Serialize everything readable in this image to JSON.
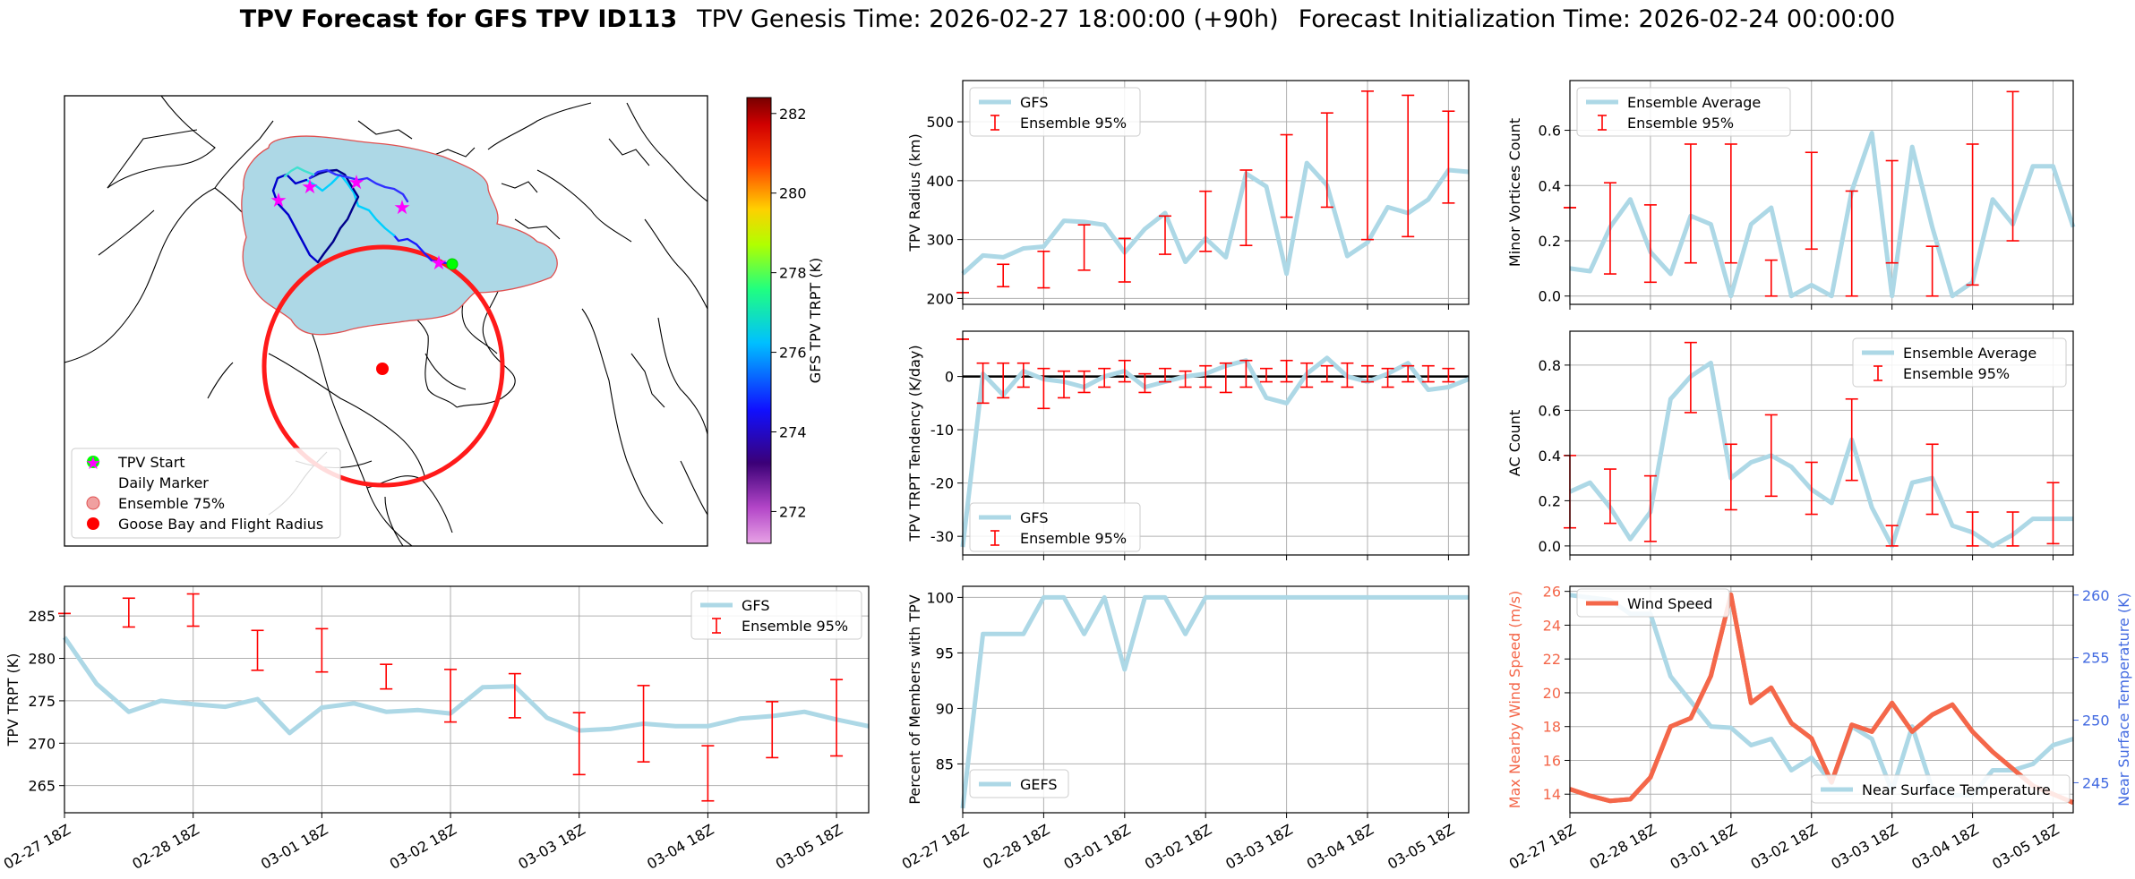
{
  "title": {
    "bold": "TPV Forecast for GFS TPV ID113",
    "genesis": "TPV Genesis Time: 2026-02-27 18:00:00 (+90h)",
    "init": "Forecast Initialization Time: 2026-02-24 00:00:00"
  },
  "colors": {
    "gfs_line": "#add8e6",
    "errorbar": "#ff0000",
    "wind": "#f4674a",
    "surface_temp": "#add8e6",
    "temp_axis": "#4169e1",
    "marker_start": "#00ff00",
    "marker_daily": "#ff00ff",
    "goose": "#ff0000",
    "ensemble_fill": "#add8e6"
  },
  "x_ticks": [
    "02-27 18Z",
    "02-28 18Z",
    "03-01 18Z",
    "03-02 18Z",
    "03-03 18Z",
    "03-04 18Z",
    "03-05 18Z"
  ],
  "map": {
    "colorbar_label": "GFS TPV TRPT (K)",
    "colorbar_ticks": [
      272,
      274,
      276,
      278,
      280,
      282
    ],
    "colorbar_range": [
      271.2,
      282.4
    ],
    "legend": [
      "TPV Start",
      "Daily Marker",
      "Ensemble 75%",
      "Goose Bay and Flight Radius"
    ]
  },
  "chart_data": [
    {
      "id": "trpt",
      "type": "line",
      "title": "",
      "xlabel": "",
      "ylabel": "TPV TRPT (K)",
      "ylim": [
        261.8,
        288.5
      ],
      "yticks": [
        265,
        270,
        275,
        280,
        285
      ],
      "legend_position": "top-right",
      "series": [
        {
          "name": "GFS",
          "kind": "line",
          "values": [
            282.5,
            277,
            273.7,
            275,
            274.6,
            274.3,
            275.2,
            271.2,
            274.2,
            274.7,
            273.7,
            273.9,
            273.5,
            276.6,
            276.7,
            273,
            271.5,
            271.7,
            272.3,
            272,
            272,
            272.9,
            273.2,
            273.7,
            272.8,
            272
          ]
        },
        {
          "name": "Ensemble 95%",
          "kind": "errorbar",
          "bars": [
            [
              0,
              285.3,
              285.3
            ],
            [
              2,
              283.7,
              287.1
            ],
            [
              4,
              283.8,
              287.6
            ],
            [
              6,
              278.6,
              283.3
            ],
            [
              8,
              278.4,
              283.5
            ],
            [
              10,
              276.4,
              279.3
            ],
            [
              12,
              272.5,
              278.7
            ],
            [
              14,
              273,
              278.2
            ],
            [
              16,
              266.3,
              273.6
            ],
            [
              18,
              267.8,
              276.8
            ],
            [
              20,
              263.2,
              269.7
            ],
            [
              22,
              268.3,
              274.9
            ],
            [
              24,
              268.5,
              277.5
            ]
          ]
        }
      ]
    },
    {
      "id": "radius",
      "type": "line",
      "ylabel": "TPV Radius (km)",
      "ylim": [
        190,
        570
      ],
      "yticks": [
        200,
        300,
        400,
        500
      ],
      "legend_position": "top-left",
      "series": [
        {
          "name": "GFS",
          "kind": "line",
          "values": [
            242,
            273,
            270,
            285,
            288,
            332,
            330,
            325,
            278,
            318,
            345,
            262,
            302,
            270,
            412,
            390,
            242,
            430,
            392,
            272,
            295,
            355,
            345,
            368,
            418,
            415
          ]
        },
        {
          "name": "Ensemble 95%",
          "kind": "errorbar",
          "bars": [
            [
              0,
              210,
              210
            ],
            [
              2,
              220,
              258
            ],
            [
              4,
              218,
              280
            ],
            [
              6,
              248,
              325
            ],
            [
              8,
              228,
              302
            ],
            [
              10,
              275,
              340
            ],
            [
              12,
              280,
              382
            ],
            [
              14,
              290,
              418
            ],
            [
              16,
              338,
              478
            ],
            [
              18,
              355,
              515
            ],
            [
              20,
              300,
              552
            ],
            [
              22,
              305,
              545
            ],
            [
              24,
              362,
              518
            ]
          ]
        }
      ]
    },
    {
      "id": "minor",
      "type": "line",
      "ylabel": "Minor Vortices Count",
      "ylim": [
        -0.03,
        0.78
      ],
      "yticks": [
        0.0,
        0.2,
        0.4,
        0.6
      ],
      "legend_position": "top-left",
      "series": [
        {
          "name": "Ensemble Average",
          "kind": "line",
          "values": [
            0.1,
            0.09,
            0.25,
            0.35,
            0.16,
            0.08,
            0.29,
            0.26,
            0.0,
            0.26,
            0.32,
            0.0,
            0.04,
            0.0,
            0.38,
            0.59,
            0.0,
            0.54,
            0.25,
            0.0,
            0.05,
            0.35,
            0.26,
            0.47,
            0.47,
            0.25
          ]
        },
        {
          "name": "Ensemble 95%",
          "kind": "errorbar",
          "bars": [
            [
              0,
              0.32,
              0.32
            ],
            [
              2,
              0.08,
              0.41
            ],
            [
              4,
              0.05,
              0.33
            ],
            [
              6,
              0.12,
              0.55
            ],
            [
              8,
              0.12,
              0.55
            ],
            [
              10,
              0.0,
              0.13
            ],
            [
              12,
              0.17,
              0.52
            ],
            [
              14,
              0.0,
              0.38
            ],
            [
              16,
              0.12,
              0.49
            ],
            [
              18,
              0.0,
              0.18
            ],
            [
              20,
              0.04,
              0.55
            ],
            [
              22,
              0.2,
              0.74
            ]
          ]
        }
      ]
    },
    {
      "id": "tendency",
      "type": "line",
      "ylabel": "TPV TRPT Tendency (K/day)",
      "ylim": [
        -33.5,
        8.5
      ],
      "yticks": [
        -30,
        -20,
        -10,
        0
      ],
      "legend_position": "bottom-left",
      "zero_line": true,
      "series": [
        {
          "name": "GFS",
          "kind": "line",
          "values": [
            -32,
            0.5,
            -3.5,
            1,
            -0.5,
            -1,
            -2,
            0,
            1,
            -2,
            -1,
            0,
            0.5,
            2,
            3,
            -4,
            -5,
            0.5,
            3.5,
            0,
            -1,
            0.5,
            2.5,
            -2.5,
            -2,
            -0.5
          ]
        },
        {
          "name": "Ensemble 95%",
          "kind": "errorbar",
          "bars": [
            [
              0,
              7,
              7
            ],
            [
              1,
              -5,
              2.5
            ],
            [
              2,
              -4,
              2.5
            ],
            [
              3,
              -2,
              2.5
            ],
            [
              4,
              -6,
              1.5
            ],
            [
              5,
              -4,
              1
            ],
            [
              6,
              -3,
              1
            ],
            [
              7,
              -2,
              1.5
            ],
            [
              8,
              -1,
              3
            ],
            [
              9,
              -3,
              0.5
            ],
            [
              10,
              -1,
              1.5
            ],
            [
              11,
              -2,
              1
            ],
            [
              12,
              -2,
              2
            ],
            [
              13,
              -3,
              2.5
            ],
            [
              14,
              -2,
              3
            ],
            [
              15,
              -1,
              1.5
            ],
            [
              16,
              -1,
              3
            ],
            [
              17,
              -2,
              2.5
            ],
            [
              18,
              -1,
              2
            ],
            [
              19,
              -2,
              2.5
            ],
            [
              20,
              -1,
              2
            ],
            [
              21,
              -2,
              1.5
            ],
            [
              22,
              -1,
              2
            ],
            [
              23,
              -1,
              2
            ],
            [
              24,
              -1,
              1.5
            ]
          ]
        }
      ]
    },
    {
      "id": "ac",
      "type": "line",
      "ylabel": "AC Count",
      "ylim": [
        -0.04,
        0.95
      ],
      "yticks": [
        0.0,
        0.2,
        0.4,
        0.6,
        0.8
      ],
      "legend_position": "top-right",
      "series": [
        {
          "name": "Ensemble Average",
          "kind": "line",
          "values": [
            0.24,
            0.28,
            0.17,
            0.03,
            0.15,
            0.65,
            0.75,
            0.81,
            0.3,
            0.37,
            0.4,
            0.35,
            0.25,
            0.19,
            0.47,
            0.17,
            0.0,
            0.28,
            0.3,
            0.09,
            0.06,
            0.0,
            0.05,
            0.12,
            0.12,
            0.12
          ]
        },
        {
          "name": "Ensemble 95%",
          "kind": "errorbar",
          "bars": [
            [
              0,
              0.08,
              0.4
            ],
            [
              2,
              0.1,
              0.34
            ],
            [
              4,
              0.02,
              0.31
            ],
            [
              6,
              0.59,
              0.9
            ],
            [
              8,
              0.16,
              0.45
            ],
            [
              10,
              0.22,
              0.58
            ],
            [
              12,
              0.14,
              0.37
            ],
            [
              14,
              0.29,
              0.65
            ],
            [
              16,
              0.0,
              0.09
            ],
            [
              18,
              0.14,
              0.45
            ],
            [
              20,
              0.0,
              0.15
            ],
            [
              22,
              0.0,
              0.15
            ],
            [
              24,
              0.01,
              0.28
            ]
          ]
        }
      ]
    },
    {
      "id": "members",
      "type": "line",
      "ylabel": "Percent of Members with TPV",
      "ylim": [
        80.6,
        101
      ],
      "yticks": [
        85,
        90,
        95,
        100
      ],
      "legend_position": "bottom-left",
      "series": [
        {
          "name": "GEFS",
          "kind": "line",
          "values": [
            81,
            96.7,
            96.7,
            96.7,
            100,
            100,
            96.7,
            100,
            93.5,
            100,
            100,
            96.7,
            100,
            100,
            100,
            100,
            100,
            100,
            100,
            100,
            100,
            100,
            100,
            100,
            100,
            100
          ]
        }
      ]
    },
    {
      "id": "wind",
      "type": "line",
      "ylabel": "Max Nearby Wind Speed (m/s)",
      "ylabel_right": "Near Surface Temperature (K)",
      "ylim": [
        12.9,
        26.3
      ],
      "yticks": [
        14,
        16,
        18,
        20,
        22,
        24,
        26
      ],
      "ylim_right": [
        242.6,
        260.7
      ],
      "yticks_right": [
        245,
        250,
        255,
        260
      ],
      "legend_position": "top-left / bottom-right",
      "series": [
        {
          "name": "Wind Speed",
          "kind": "line",
          "axis": "left",
          "values": [
            14.3,
            13.9,
            13.6,
            13.7,
            15,
            18,
            18.5,
            21,
            25.8,
            19.4,
            20.3,
            18.2,
            17.3,
            14.7,
            18.1,
            17.7,
            19.4,
            17.7,
            18.7,
            19.3,
            17.7,
            16.5,
            15.5,
            14.5,
            14,
            13.5
          ]
        },
        {
          "name": "Near Surface Temperature",
          "kind": "line",
          "axis": "right",
          "values": [
            260,
            259.8,
            259.6,
            258.5,
            258.5,
            253.5,
            251.5,
            249.5,
            249.4,
            248,
            248.5,
            246,
            247,
            245,
            249.5,
            248.5,
            244.3,
            249.5,
            244.5,
            244,
            244,
            246,
            246,
            246.5,
            248,
            248.5
          ]
        }
      ]
    }
  ]
}
